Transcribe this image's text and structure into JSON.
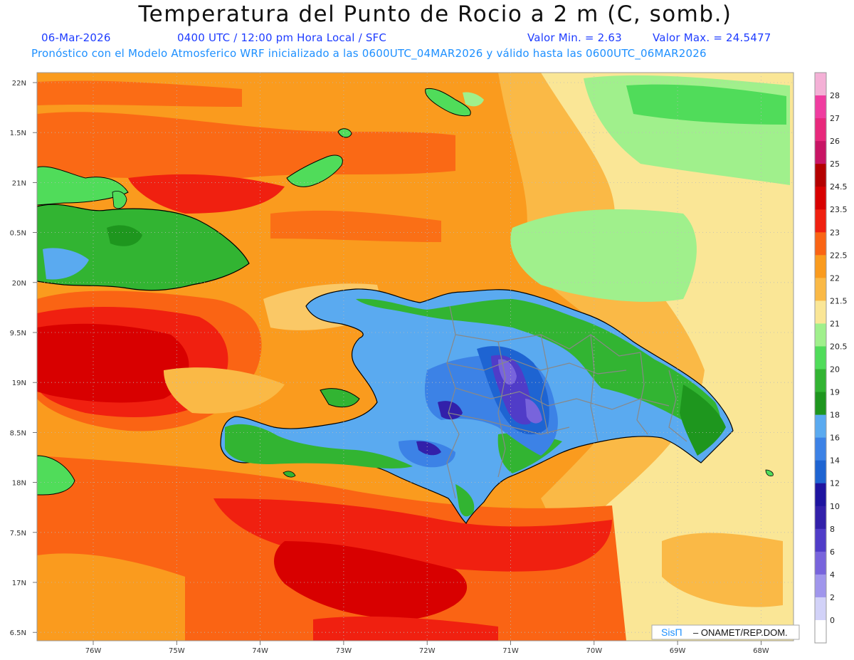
{
  "title": "Temperatura del Punto de Rocio a 2 m (C, somb.)",
  "header": {
    "date": "06-Mar-2026",
    "time_info": "0400 UTC / 12:00 pm Hora Local / SFC",
    "val_min": "Valor Min. = 2.63",
    "val_max": "Valor Max. = 24.5477",
    "model_line": "Pronóstico con el Modelo Atmosferico WRF inicializado a las 0600UTC_04MAR2026 y válido hasta las  0600UTC_06MAR2026"
  },
  "axes": {
    "lat_labels": [
      "22N",
      "1.5N",
      "21N",
      "0.5N",
      "20N",
      "9.5N",
      "19N",
      "8.5N",
      "18N",
      "7.5N",
      "17N",
      "6.5N"
    ],
    "lon_labels": [
      "76W",
      "75W",
      "74W",
      "73W",
      "72W",
      "71W",
      "70W",
      "69W",
      "68W"
    ]
  },
  "colorbar": {
    "labels": [
      "28",
      "27",
      "26",
      "25",
      "24.5",
      "23.5",
      "23",
      "22.5",
      "22",
      "21.5",
      "21",
      "20.5",
      "20",
      "19",
      "18",
      "16",
      "14",
      "12",
      "10",
      "8",
      "6",
      "4",
      "2",
      "0"
    ],
    "colors": [
      "#f4b0d6",
      "#f03ca0",
      "#e8287c",
      "#c81464",
      "#b40000",
      "#d80000",
      "#f02010",
      "#fa6414",
      "#fa9b1e",
      "#fab946",
      "#fae696",
      "#a0f08c",
      "#50dc5a",
      "#32b432",
      "#1e961e",
      "#5aaaf0",
      "#3c82e6",
      "#1e64d2",
      "#1e14a0",
      "#3220aa",
      "#503cc8",
      "#7864dc",
      "#a096ec",
      "#d2d2f8",
      "#ffffff"
    ]
  },
  "credit": {
    "brand": "SisΠ",
    "text": "– ONAMET/REP.DOM."
  }
}
